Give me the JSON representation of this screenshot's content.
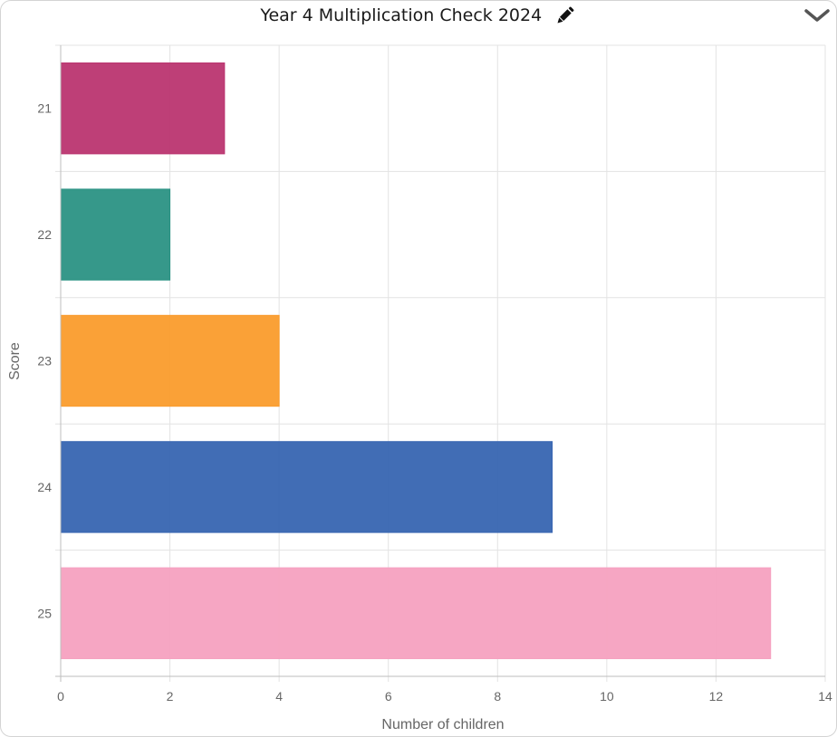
{
  "header": {
    "title": "Year 4 Multiplication Check 2024",
    "edit_icon": "pencil-icon",
    "collapse_icon": "chevron-down-icon"
  },
  "chart_data": {
    "type": "bar",
    "orientation": "horizontal",
    "categories": [
      "21",
      "22",
      "23",
      "24",
      "25"
    ],
    "values": [
      3,
      2,
      4,
      9,
      13
    ],
    "colors": [
      "#bb3570",
      "#2b9284",
      "#fa9c2c",
      "#3765b1",
      "#f5a1c0"
    ],
    "xlabel": "Number of children",
    "ylabel": "Score",
    "xlim": [
      0,
      14
    ],
    "xticks": [
      "0",
      "2",
      "4",
      "6",
      "8",
      "10",
      "12",
      "14"
    ],
    "grid": true
  }
}
